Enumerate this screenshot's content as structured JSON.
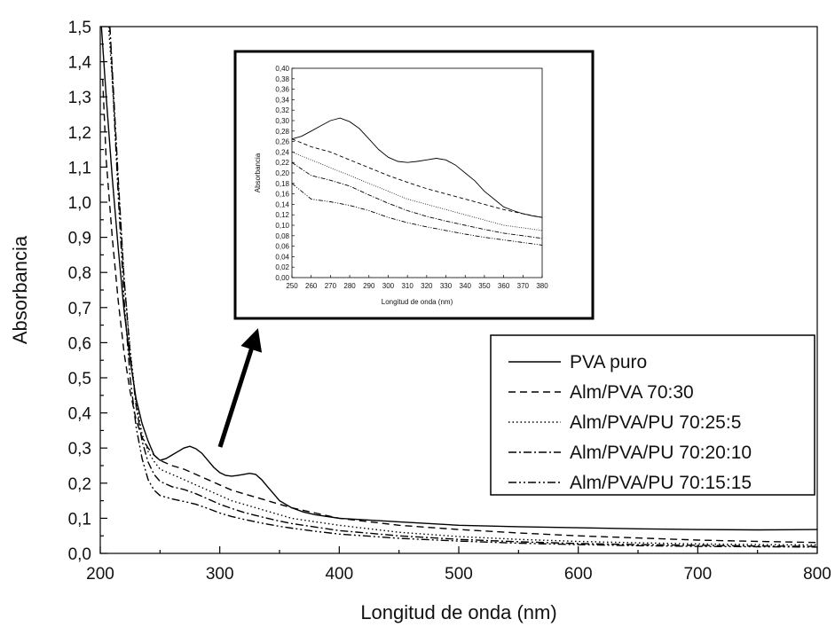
{
  "chart_data": [
    {
      "type": "line",
      "xlabel": "Longitud de onda (nm)",
      "ylabel": "Absorbancia",
      "xlim": [
        200,
        800
      ],
      "ylim": [
        0.0,
        1.5
      ],
      "xticks": [
        200,
        300,
        400,
        500,
        600,
        700,
        800
      ],
      "xtick_labels": [
        "200",
        "300",
        "400",
        "500",
        "600",
        "700",
        "800"
      ],
      "yticks": [
        0.0,
        0.1,
        0.2,
        0.3,
        0.4,
        0.5,
        0.6,
        0.7,
        0.8,
        0.9,
        1.0,
        1.1,
        1.2,
        1.3,
        1.4,
        1.5
      ],
      "ytick_labels": [
        "0,0",
        "0,1",
        "0,2",
        "0,3",
        "0,4",
        "0,5",
        "0,6",
        "0,7",
        "0,8",
        "0,9",
        "1,0",
        "1,1",
        "1,2",
        "1,3",
        "1,4",
        "1,5"
      ],
      "grid": false,
      "legend_position": "right",
      "series": [
        {
          "name": "PVA puro",
          "dash": "solid",
          "x": [
            201,
            205,
            210,
            215,
            220,
            225,
            230,
            235,
            240,
            245,
            250,
            255,
            260,
            265,
            270,
            275,
            280,
            285,
            290,
            295,
            300,
            305,
            310,
            315,
            320,
            325,
            330,
            335,
            340,
            345,
            350,
            360,
            370,
            380,
            400,
            450,
            500,
            550,
            600,
            650,
            700,
            750,
            800
          ],
          "y": [
            1.5,
            1.3,
            1.07,
            0.87,
            0.69,
            0.55,
            0.44,
            0.37,
            0.32,
            0.28,
            0.265,
            0.27,
            0.28,
            0.29,
            0.3,
            0.305,
            0.298,
            0.285,
            0.265,
            0.245,
            0.23,
            0.222,
            0.22,
            0.222,
            0.225,
            0.228,
            0.225,
            0.21,
            0.19,
            0.17,
            0.15,
            0.13,
            0.118,
            0.11,
            0.1,
            0.09,
            0.08,
            0.076,
            0.073,
            0.07,
            0.068,
            0.067,
            0.068
          ]
        },
        {
          "name": "Alm/PVA 70:30",
          "dash": "dashed",
          "x": [
            202,
            205,
            210,
            215,
            220,
            225,
            230,
            235,
            240,
            245,
            250,
            260,
            270,
            280,
            290,
            300,
            310,
            320,
            330,
            340,
            350,
            360,
            380,
            400,
            450,
            500,
            550,
            600,
            650,
            700,
            750,
            800
          ],
          "y": [
            1.35,
            1.12,
            0.9,
            0.72,
            0.57,
            0.46,
            0.38,
            0.33,
            0.3,
            0.28,
            0.265,
            0.25,
            0.24,
            0.225,
            0.21,
            0.195,
            0.18,
            0.17,
            0.16,
            0.15,
            0.14,
            0.13,
            0.115,
            0.1,
            0.08,
            0.068,
            0.058,
            0.05,
            0.044,
            0.038,
            0.034,
            0.031
          ]
        },
        {
          "name": "Alm/PVA/PU 70:25:5",
          "dash": "dotted",
          "x": [
            207,
            210,
            215,
            220,
            225,
            230,
            235,
            240,
            245,
            250,
            260,
            270,
            280,
            290,
            300,
            310,
            320,
            330,
            340,
            350,
            360,
            380,
            400,
            450,
            500,
            550,
            600,
            650,
            700,
            750,
            800
          ],
          "y": [
            1.5,
            1.35,
            1.05,
            0.78,
            0.58,
            0.43,
            0.34,
            0.29,
            0.262,
            0.24,
            0.225,
            0.21,
            0.195,
            0.18,
            0.165,
            0.15,
            0.14,
            0.13,
            0.12,
            0.11,
            0.1,
            0.09,
            0.08,
            0.06,
            0.048,
            0.04,
            0.034,
            0.03,
            0.027,
            0.025,
            0.024
          ]
        },
        {
          "name": "Alm/PVA/PU 70:20:10",
          "dash": "dashdot",
          "x": [
            208,
            210,
            215,
            220,
            225,
            230,
            235,
            240,
            245,
            250,
            260,
            270,
            280,
            290,
            300,
            310,
            320,
            330,
            340,
            350,
            360,
            380,
            400,
            450,
            500,
            550,
            600,
            650,
            700,
            750,
            800
          ],
          "y": [
            1.5,
            1.38,
            1.07,
            0.78,
            0.57,
            0.42,
            0.32,
            0.26,
            0.225,
            0.205,
            0.19,
            0.182,
            0.17,
            0.155,
            0.14,
            0.128,
            0.117,
            0.108,
            0.1,
            0.092,
            0.085,
            0.075,
            0.065,
            0.05,
            0.04,
            0.033,
            0.028,
            0.025,
            0.023,
            0.021,
            0.02
          ]
        },
        {
          "name": "Alm/PVA/PU 70:15:15",
          "dash": "dashdotdot",
          "x": [
            208,
            210,
            215,
            220,
            225,
            230,
            235,
            240,
            245,
            250,
            260,
            270,
            280,
            290,
            300,
            310,
            320,
            330,
            340,
            350,
            360,
            380,
            400,
            450,
            500,
            550,
            600,
            650,
            700,
            750,
            800
          ],
          "y": [
            1.5,
            1.36,
            1.02,
            0.72,
            0.5,
            0.36,
            0.27,
            0.21,
            0.18,
            0.165,
            0.155,
            0.148,
            0.14,
            0.128,
            0.115,
            0.105,
            0.097,
            0.09,
            0.083,
            0.077,
            0.072,
            0.063,
            0.055,
            0.043,
            0.035,
            0.029,
            0.025,
            0.022,
            0.02,
            0.019,
            0.018
          ]
        }
      ]
    },
    {
      "type": "line",
      "xlabel": "Longitud de onda (nm)",
      "ylabel": "Absorbancia",
      "xlim": [
        250,
        380
      ],
      "ylim": [
        0.0,
        0.4
      ],
      "xticks": [
        250,
        260,
        270,
        280,
        290,
        300,
        310,
        320,
        330,
        340,
        350,
        360,
        370,
        380
      ],
      "xtick_labels": [
        "250",
        "260",
        "270",
        "280",
        "290",
        "300",
        "310",
        "320",
        "330",
        "340",
        "350",
        "360",
        "370",
        "380"
      ],
      "yticks": [
        0.0,
        0.02,
        0.04,
        0.06,
        0.08,
        0.1,
        0.12,
        0.14,
        0.16,
        0.18,
        0.2,
        0.22,
        0.24,
        0.26,
        0.28,
        0.3,
        0.32,
        0.34,
        0.36,
        0.38,
        0.4
      ],
      "ytick_labels": [
        "0,00",
        "0,02",
        "0,04",
        "0,06",
        "0,08",
        "0,10",
        "0,12",
        "0,14",
        "0,16",
        "0,18",
        "0,20",
        "0,22",
        "0,24",
        "0,26",
        "0,28",
        "0,30",
        "0,32",
        "0,34",
        "0,36",
        "0,38",
        "0,40"
      ],
      "grid": false,
      "series": [
        {
          "dash": "solid",
          "x": [
            250,
            255,
            260,
            265,
            270,
            275,
            280,
            285,
            290,
            295,
            300,
            305,
            310,
            315,
            320,
            325,
            330,
            335,
            340,
            345,
            350,
            355,
            360,
            365,
            370,
            375,
            380
          ],
          "y": [
            0.265,
            0.27,
            0.28,
            0.29,
            0.3,
            0.305,
            0.298,
            0.285,
            0.265,
            0.245,
            0.23,
            0.222,
            0.22,
            0.222,
            0.225,
            0.228,
            0.225,
            0.215,
            0.2,
            0.185,
            0.165,
            0.15,
            0.135,
            0.128,
            0.122,
            0.118,
            0.115
          ]
        },
        {
          "dash": "dashed",
          "x": [
            250,
            260,
            270,
            280,
            290,
            300,
            310,
            320,
            330,
            340,
            350,
            360,
            370,
            380
          ],
          "y": [
            0.265,
            0.25,
            0.24,
            0.225,
            0.21,
            0.195,
            0.182,
            0.17,
            0.16,
            0.15,
            0.14,
            0.13,
            0.122,
            0.115
          ]
        },
        {
          "dash": "dotted",
          "x": [
            250,
            260,
            270,
            280,
            290,
            300,
            310,
            320,
            330,
            340,
            350,
            360,
            370,
            380
          ],
          "y": [
            0.24,
            0.225,
            0.21,
            0.195,
            0.18,
            0.165,
            0.15,
            0.14,
            0.13,
            0.12,
            0.11,
            0.1,
            0.095,
            0.09
          ]
        },
        {
          "dash": "dashdot",
          "x": [
            250,
            260,
            270,
            280,
            290,
            300,
            310,
            320,
            330,
            340,
            350,
            360,
            370,
            380
          ],
          "y": [
            0.22,
            0.195,
            0.186,
            0.175,
            0.158,
            0.142,
            0.128,
            0.117,
            0.108,
            0.1,
            0.092,
            0.085,
            0.08,
            0.075
          ]
        },
        {
          "dash": "dashdotdot",
          "x": [
            250,
            260,
            270,
            280,
            290,
            300,
            310,
            320,
            330,
            340,
            350,
            360,
            370,
            380
          ],
          "y": [
            0.18,
            0.15,
            0.145,
            0.138,
            0.128,
            0.115,
            0.105,
            0.097,
            0.09,
            0.083,
            0.077,
            0.072,
            0.067,
            0.062
          ]
        }
      ]
    }
  ]
}
